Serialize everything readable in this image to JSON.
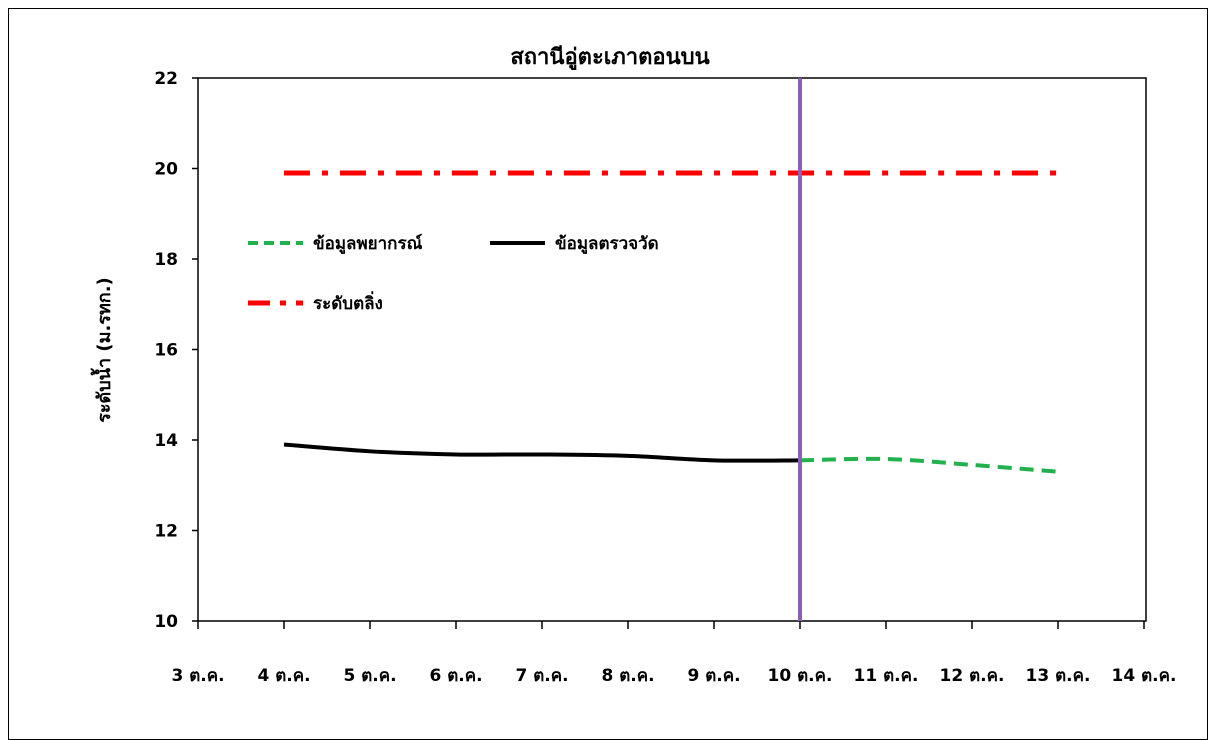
{
  "chart_data": {
    "type": "line",
    "title": "สถานีอู่ตะเภาตอนบน",
    "ylabel": "ระดับน้ำ (ม.รทก.)",
    "xlabel": "",
    "ylim": [
      10,
      22
    ],
    "yticks": [
      10,
      12,
      14,
      16,
      18,
      20,
      22
    ],
    "categories": [
      "3 ต.ค.",
      "4 ต.ค.",
      "5 ต.ค.",
      "6 ต.ค.",
      "7 ต.ค.",
      "8 ต.ค.",
      "9 ต.ค.",
      "10 ต.ค.",
      "11 ต.ค.",
      "12 ต.ค.",
      "13 ต.ค.",
      "14 ต.ค."
    ],
    "grid": false,
    "series": [
      {
        "name": "ข้อมูลพยากรณ์",
        "color": "#22b14c",
        "style": "dashed",
        "points": [
          [
            7,
            13.55
          ],
          [
            8,
            13.58
          ],
          [
            9,
            13.45
          ],
          [
            10,
            13.3
          ]
        ]
      },
      {
        "name": "ข้อมูลตรวจวัด",
        "color": "#000000",
        "style": "solid",
        "points": [
          [
            1,
            13.9
          ],
          [
            2,
            13.75
          ],
          [
            3,
            13.68
          ],
          [
            4,
            13.68
          ],
          [
            5,
            13.65
          ],
          [
            6,
            13.55
          ],
          [
            7,
            13.55
          ]
        ]
      },
      {
        "name": "ระดับตลิ่ง",
        "color": "#ff0000",
        "style": "dash-dot",
        "points": [
          [
            1,
            19.9
          ],
          [
            10,
            19.9
          ]
        ]
      }
    ],
    "marker_line": {
      "x": 7,
      "color": "#8e5fb4"
    },
    "legend": "inside-upper-left"
  }
}
